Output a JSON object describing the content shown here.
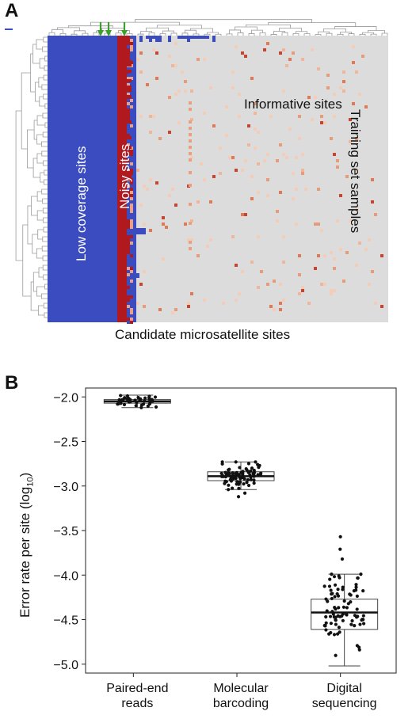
{
  "panel_labels": {
    "a": "A",
    "b": "B"
  },
  "heatmap": {
    "xlabel": "Candidate microsatellite sites",
    "ylabel": "Training set samples",
    "region_labels": {
      "low": "Low coverage sites",
      "noisy": "Noisy sites",
      "informative": "Informative sites"
    },
    "colors": {
      "low": "#3a4cc0",
      "noisy": "#b0191e",
      "informative": "#dcdcdc",
      "arrow": "#3aa02a",
      "dendrogram": "#9a9a9a"
    },
    "arrow_count": 3
  },
  "chart_data": {
    "type": "box",
    "ylabel_main": "Error rate per site (log",
    "ylabel_sub": "10",
    "ylabel_end": ")",
    "ylim": [
      -5.1,
      -1.9
    ],
    "yticks": [
      -2.0,
      -2.5,
      -3.0,
      -3.5,
      -4.0,
      -4.5,
      -5.0
    ],
    "ytick_labels": [
      "−2.0",
      "−2.5",
      "−3.0",
      "−3.5",
      "−4.0",
      "−4.5",
      "−5.0"
    ],
    "categories": [
      {
        "line1": "Paired-end",
        "line2": "reads"
      },
      {
        "line1": "Molecular",
        "line2": "barcoding"
      },
      {
        "line1": "Digital",
        "line2": "sequencing"
      }
    ],
    "boxes": [
      {
        "whisker_low": -2.12,
        "q1": -2.07,
        "median": -2.05,
        "q3": -2.03,
        "whisker_high": -1.98,
        "outliers": []
      },
      {
        "whisker_low": -3.04,
        "q1": -2.94,
        "median": -2.89,
        "q3": -2.84,
        "whisker_high": -2.73,
        "outliers": [
          -3.12,
          -3.08
        ]
      },
      {
        "whisker_low": -5.02,
        "q1": -4.61,
        "median": -4.42,
        "q3": -4.27,
        "whisker_high": -3.99,
        "outliers": [
          -3.57,
          -3.71,
          -3.82
        ]
      }
    ]
  }
}
